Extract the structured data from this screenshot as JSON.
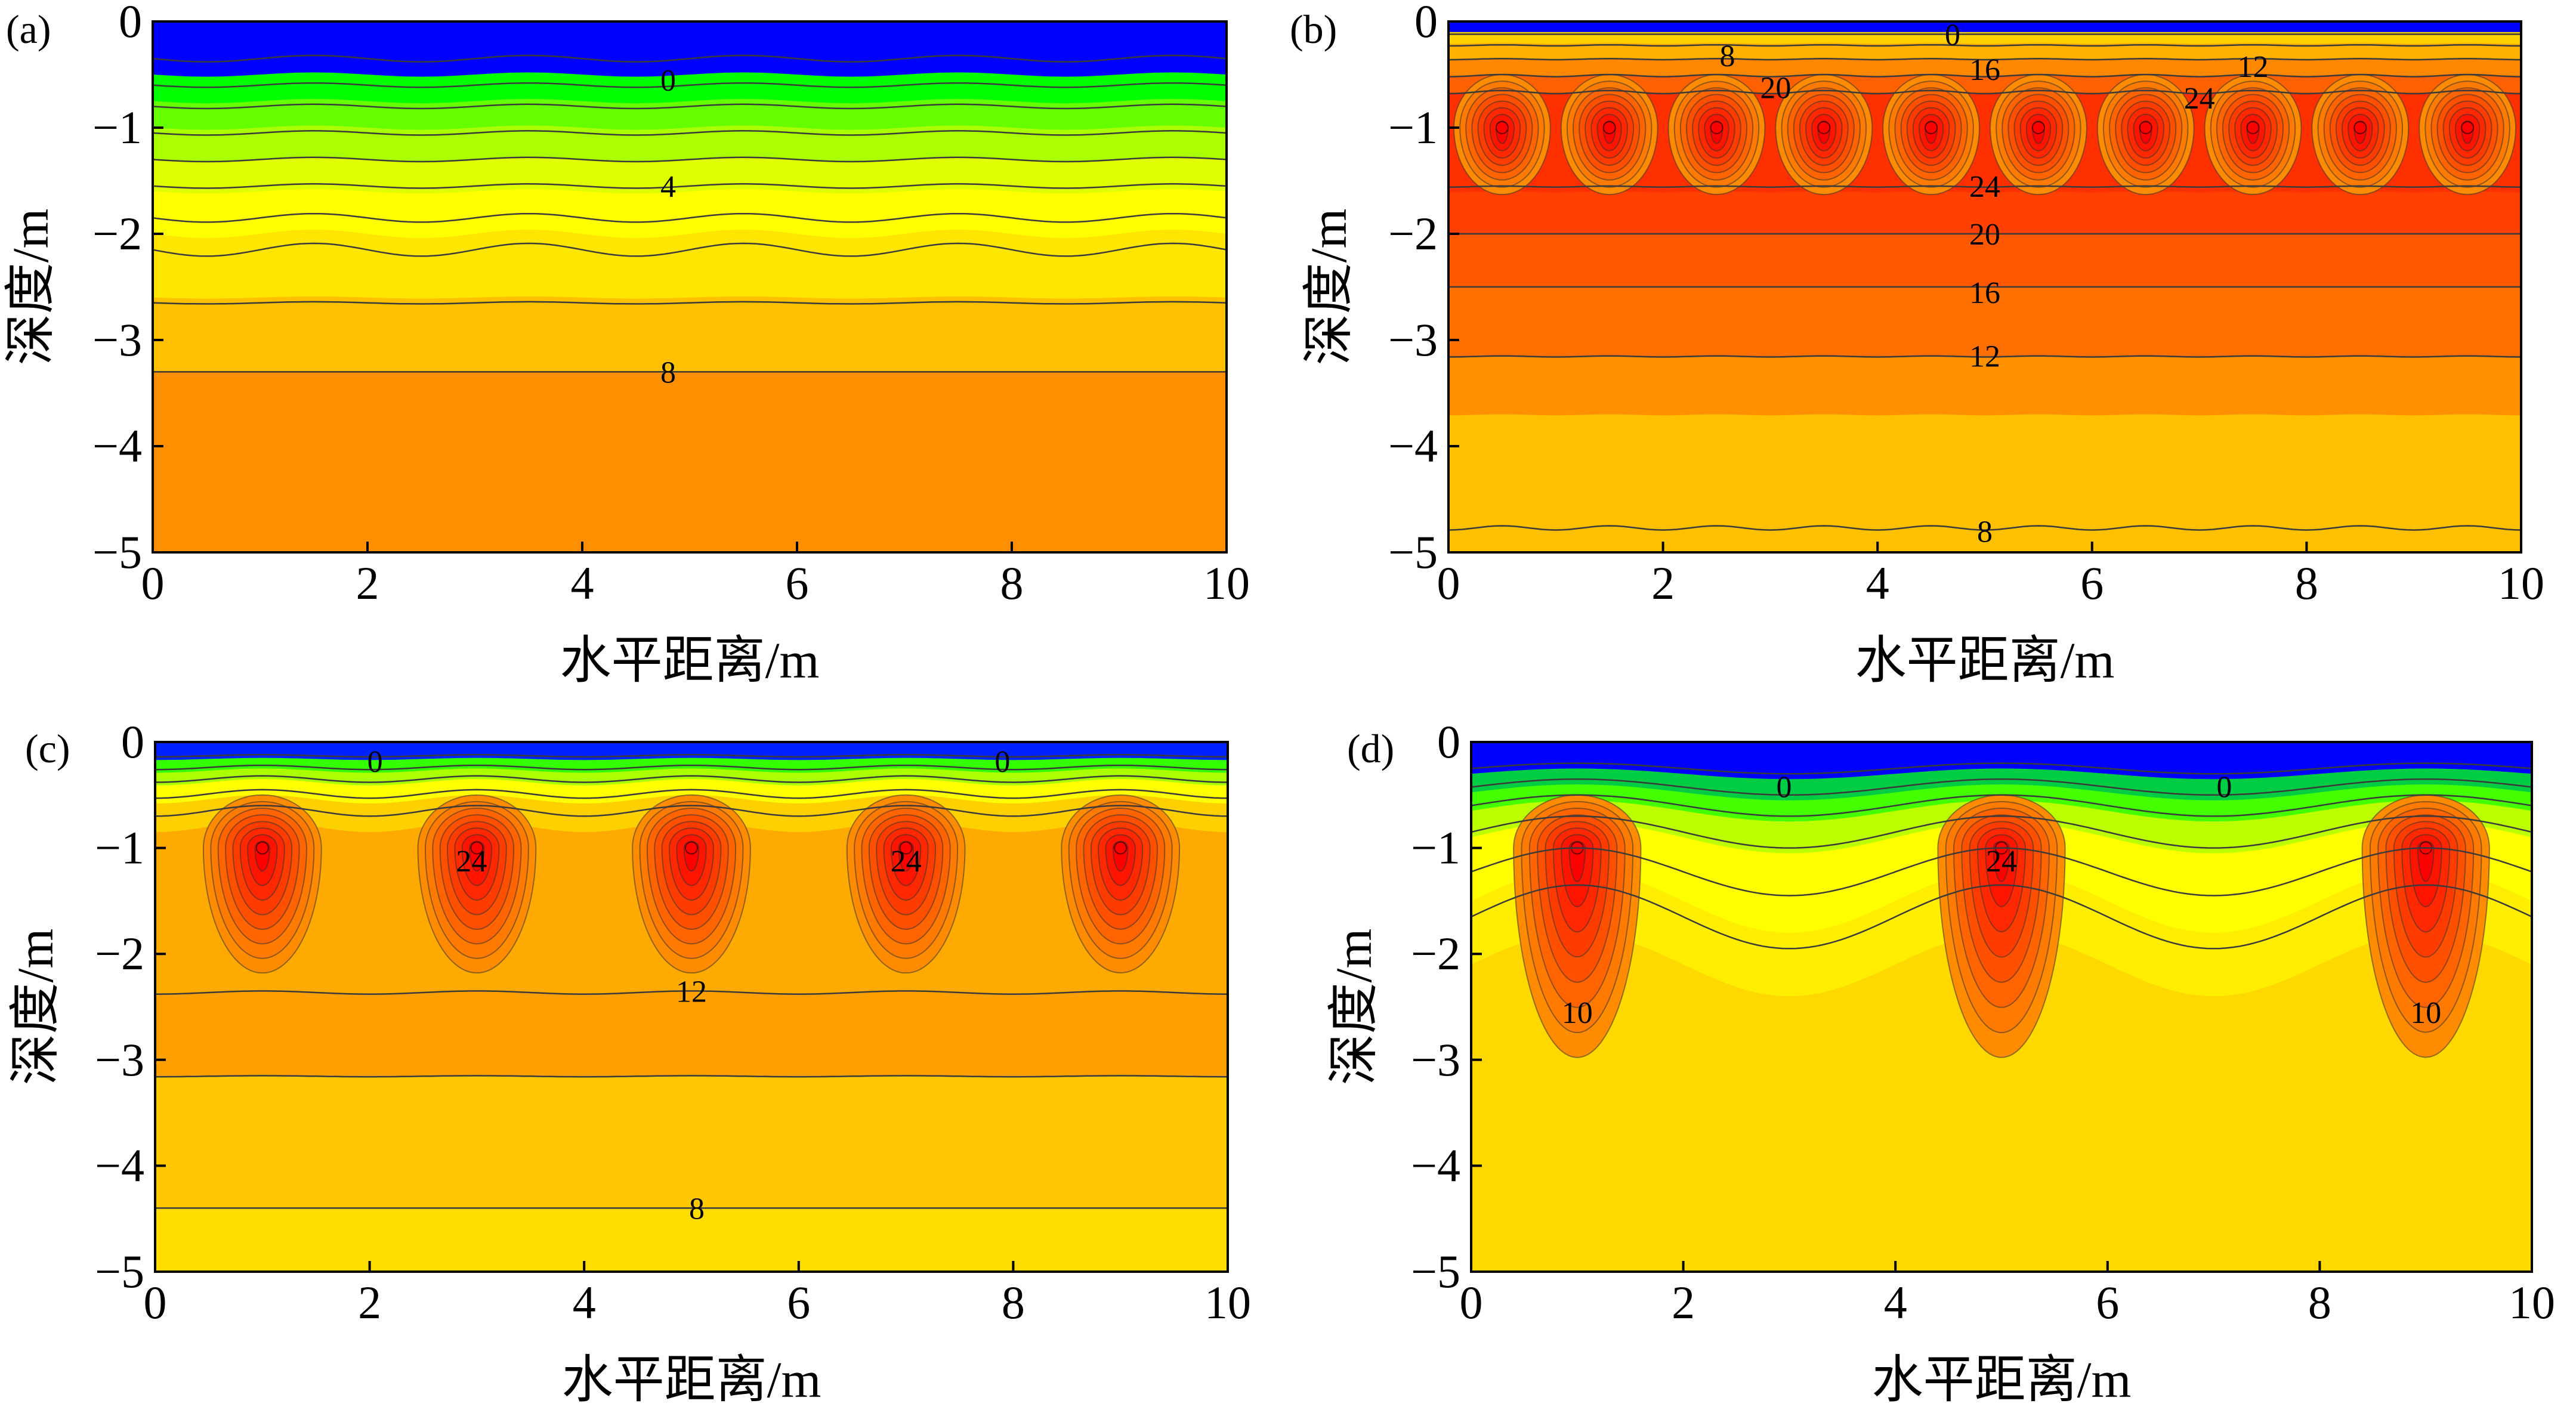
{
  "chart_data": [
    {
      "type": "contour",
      "panel": "(a)",
      "xlabel": "水平距离/m",
      "ylabel": "深度/m",
      "xlim": [
        0,
        10
      ],
      "ylim": [
        -5,
        0
      ],
      "xticks": [
        "0",
        "2",
        "4",
        "6",
        "8",
        "10"
      ],
      "yticks": [
        "0",
        "−1",
        "−2",
        "−3",
        "−4",
        "−5"
      ],
      "heat_sources": [],
      "bands": [
        {
          "depth": 0.0,
          "color": "#0000ff"
        },
        {
          "depth": 0.5,
          "color": "#00ff00"
        },
        {
          "depth": 0.75,
          "color": "#66ff00"
        },
        {
          "depth": 1.0,
          "color": "#aaff00"
        },
        {
          "depth": 1.3,
          "color": "#dfff00"
        },
        {
          "depth": 1.6,
          "color": "#ffff00"
        },
        {
          "depth": 2.0,
          "color": "#ffe600"
        },
        {
          "depth": 2.6,
          "color": "#ffc000"
        },
        {
          "depth": 3.3,
          "color": "#ff9000"
        },
        {
          "depth": 5.0,
          "color": "#ff9000"
        }
      ],
      "contour_lines": [
        {
          "depth": 0.35,
          "wave": 0.03
        },
        {
          "depth": 0.6,
          "wave": 0.02
        },
        {
          "depth": 0.8,
          "wave": 0.02
        },
        {
          "depth": 1.05,
          "wave": 0.02
        },
        {
          "depth": 1.3,
          "wave": 0.02
        },
        {
          "depth": 1.55,
          "wave": 0.02
        },
        {
          "depth": 1.85,
          "wave": 0.04
        },
        {
          "depth": 2.15,
          "wave": 0.06
        },
        {
          "depth": 2.65,
          "wave": 0.01
        },
        {
          "depth": 3.3,
          "wave": 0.0
        }
      ],
      "annotations": [
        {
          "text": "0",
          "x": 4.8,
          "y": -0.55
        },
        {
          "text": "4",
          "x": 4.8,
          "y": -1.55
        },
        {
          "text": "8",
          "x": 4.8,
          "y": -3.3
        }
      ]
    },
    {
      "type": "contour",
      "panel": "(b)",
      "xlabel": "水平距离/m",
      "ylabel": "深度/m",
      "xlim": [
        0,
        10
      ],
      "ylim": [
        -5,
        0
      ],
      "xticks": [
        "0",
        "2",
        "4",
        "6",
        "8",
        "10"
      ],
      "yticks": [
        "0",
        "−1",
        "−2",
        "−3",
        "−4",
        "−5"
      ],
      "heat_sources": [
        {
          "x": 0.5,
          "y": -1.0
        },
        {
          "x": 1.5,
          "y": -1.0
        },
        {
          "x": 2.5,
          "y": -1.0
        },
        {
          "x": 3.5,
          "y": -1.0
        },
        {
          "x": 4.5,
          "y": -1.0
        },
        {
          "x": 5.5,
          "y": -1.0
        },
        {
          "x": 6.5,
          "y": -1.0
        },
        {
          "x": 7.5,
          "y": -1.0
        },
        {
          "x": 8.5,
          "y": -1.0
        },
        {
          "x": 9.5,
          "y": -1.0
        }
      ],
      "bands": [
        {
          "depth": 0.0,
          "color": "#0000ff"
        },
        {
          "depth": 0.1,
          "color": "#ffd000"
        },
        {
          "depth": 0.2,
          "color": "#ffb000"
        },
        {
          "depth": 0.35,
          "color": "#ff8800"
        },
        {
          "depth": 0.5,
          "color": "#ff6000"
        },
        {
          "depth": 0.65,
          "color": "#ff3000"
        },
        {
          "depth": 1.6,
          "color": "#ff4000"
        },
        {
          "depth": 2.0,
          "color": "#ff5800"
        },
        {
          "depth": 2.5,
          "color": "#ff7000"
        },
        {
          "depth": 3.15,
          "color": "#ff9000"
        },
        {
          "depth": 3.7,
          "color": "#ffc000"
        },
        {
          "depth": 5.0,
          "color": "#ffd200"
        }
      ],
      "contour_lines": [
        {
          "depth": 0.12,
          "wave": 0.0
        },
        {
          "depth": 0.22,
          "wave": 0.01
        },
        {
          "depth": 0.35,
          "wave": 0.01
        },
        {
          "depth": 0.5,
          "wave": 0.02
        },
        {
          "depth": 0.65,
          "wave": 0.03
        },
        {
          "depth": 1.55,
          "wave": 0.01
        },
        {
          "depth": 2.0,
          "wave": 0.0
        },
        {
          "depth": 2.5,
          "wave": 0.0
        },
        {
          "depth": 3.15,
          "wave": 0.01
        },
        {
          "depth": 4.75,
          "wave": 0.04
        }
      ],
      "annotations": [
        {
          "text": "0",
          "x": 4.7,
          "y": -0.12
        },
        {
          "text": "8",
          "x": 2.6,
          "y": -0.32
        },
        {
          "text": "16",
          "x": 5.0,
          "y": -0.45
        },
        {
          "text": "12",
          "x": 7.5,
          "y": -0.42
        },
        {
          "text": "20",
          "x": 3.05,
          "y": -0.62
        },
        {
          "text": "24",
          "x": 7.0,
          "y": -0.72
        },
        {
          "text": "24",
          "x": 5.0,
          "y": -1.55
        },
        {
          "text": "20",
          "x": 5.0,
          "y": -2.0
        },
        {
          "text": "16",
          "x": 5.0,
          "y": -2.55
        },
        {
          "text": "12",
          "x": 5.0,
          "y": -3.15
        },
        {
          "text": "8",
          "x": 5.0,
          "y": -4.8
        }
      ]
    },
    {
      "type": "contour",
      "panel": "(c)",
      "xlabel": "水平距离/m",
      "ylabel": "深度/m",
      "xlim": [
        0,
        10
      ],
      "ylim": [
        -5,
        0
      ],
      "xticks": [
        "0",
        "2",
        "4",
        "6",
        "8",
        "10"
      ],
      "yticks": [
        "0",
        "−1",
        "−2",
        "−3",
        "−4",
        "−5"
      ],
      "heat_sources": [
        {
          "x": 1.0,
          "y": -1.0
        },
        {
          "x": 3.0,
          "y": -1.0
        },
        {
          "x": 5.0,
          "y": -1.0
        },
        {
          "x": 7.0,
          "y": -1.0
        },
        {
          "x": 9.0,
          "y": -1.0
        }
      ],
      "bands": [
        {
          "depth": 0.0,
          "color": "#0022ff"
        },
        {
          "depth": 0.15,
          "color": "#33ff00"
        },
        {
          "depth": 0.25,
          "color": "#aaff00"
        },
        {
          "depth": 0.35,
          "color": "#ffff00"
        },
        {
          "depth": 0.5,
          "color": "#ffd000"
        },
        {
          "depth": 0.75,
          "color": "#ffaa00"
        },
        {
          "depth": 2.35,
          "color": "#ffa000"
        },
        {
          "depth": 3.15,
          "color": "#ffc800"
        },
        {
          "depth": 4.4,
          "color": "#ffdd00"
        },
        {
          "depth": 5.0,
          "color": "#ffee00"
        }
      ],
      "contour_lines": [
        {
          "depth": 0.12,
          "wave": 0.02
        },
        {
          "depth": 0.22,
          "wave": 0.04
        },
        {
          "depth": 0.32,
          "wave": 0.06
        },
        {
          "depth": 0.45,
          "wave": 0.08
        },
        {
          "depth": 0.6,
          "wave": 0.1
        },
        {
          "depth": 2.35,
          "wave": 0.03
        },
        {
          "depth": 3.15,
          "wave": 0.01
        },
        {
          "depth": 4.4,
          "wave": 0.0
        }
      ],
      "annotations": [
        {
          "text": "0",
          "x": 2.05,
          "y": -0.18
        },
        {
          "text": "0",
          "x": 7.9,
          "y": -0.18
        },
        {
          "text": "24",
          "x": 2.95,
          "y": -1.12
        },
        {
          "text": "24",
          "x": 7.0,
          "y": -1.12
        },
        {
          "text": "12",
          "x": 5.0,
          "y": -2.35
        },
        {
          "text": "8",
          "x": 5.05,
          "y": -4.4
        }
      ]
    },
    {
      "type": "contour",
      "panel": "(d)",
      "xlabel": "水平距离/m",
      "ylabel": "深度/m",
      "xlim": [
        0,
        10
      ],
      "ylim": [
        -5,
        0
      ],
      "xticks": [
        "0",
        "2",
        "4",
        "6",
        "8",
        "10"
      ],
      "yticks": [
        "0",
        "−1",
        "−2",
        "−3",
        "−4",
        "−5"
      ],
      "heat_sources": [
        {
          "x": 1.0,
          "y": -1.0
        },
        {
          "x": 5.0,
          "y": -1.0
        },
        {
          "x": 9.0,
          "y": -1.0
        }
      ],
      "bands": [
        {
          "depth": 0.0,
          "color": "#0000ff"
        },
        {
          "depth": 0.25,
          "color": "#00cc44"
        },
        {
          "depth": 0.4,
          "color": "#44ff00"
        },
        {
          "depth": 0.55,
          "color": "#bbff00"
        },
        {
          "depth": 0.75,
          "color": "#ffff00"
        },
        {
          "depth": 1.2,
          "color": "#ffee00"
        },
        {
          "depth": 1.8,
          "color": "#ffd800"
        },
        {
          "depth": 5.0,
          "color": "#ffd000"
        }
      ],
      "contour_lines": [
        {
          "depth": 0.2,
          "wave": 0.1
        },
        {
          "depth": 0.35,
          "wave": 0.15
        },
        {
          "depth": 0.5,
          "wave": 0.2
        },
        {
          "depth": 0.7,
          "wave": 0.3
        },
        {
          "depth": 1.0,
          "wave": 0.45
        },
        {
          "depth": 1.35,
          "wave": 0.6
        }
      ],
      "annotations": [
        {
          "text": "0",
          "x": 2.95,
          "y": -0.42
        },
        {
          "text": "0",
          "x": 7.1,
          "y": -0.42
        },
        {
          "text": "24",
          "x": 5.0,
          "y": -1.12
        },
        {
          "text": "10",
          "x": 1.0,
          "y": -2.55
        },
        {
          "text": "10",
          "x": 9.0,
          "y": -2.55
        }
      ]
    }
  ]
}
